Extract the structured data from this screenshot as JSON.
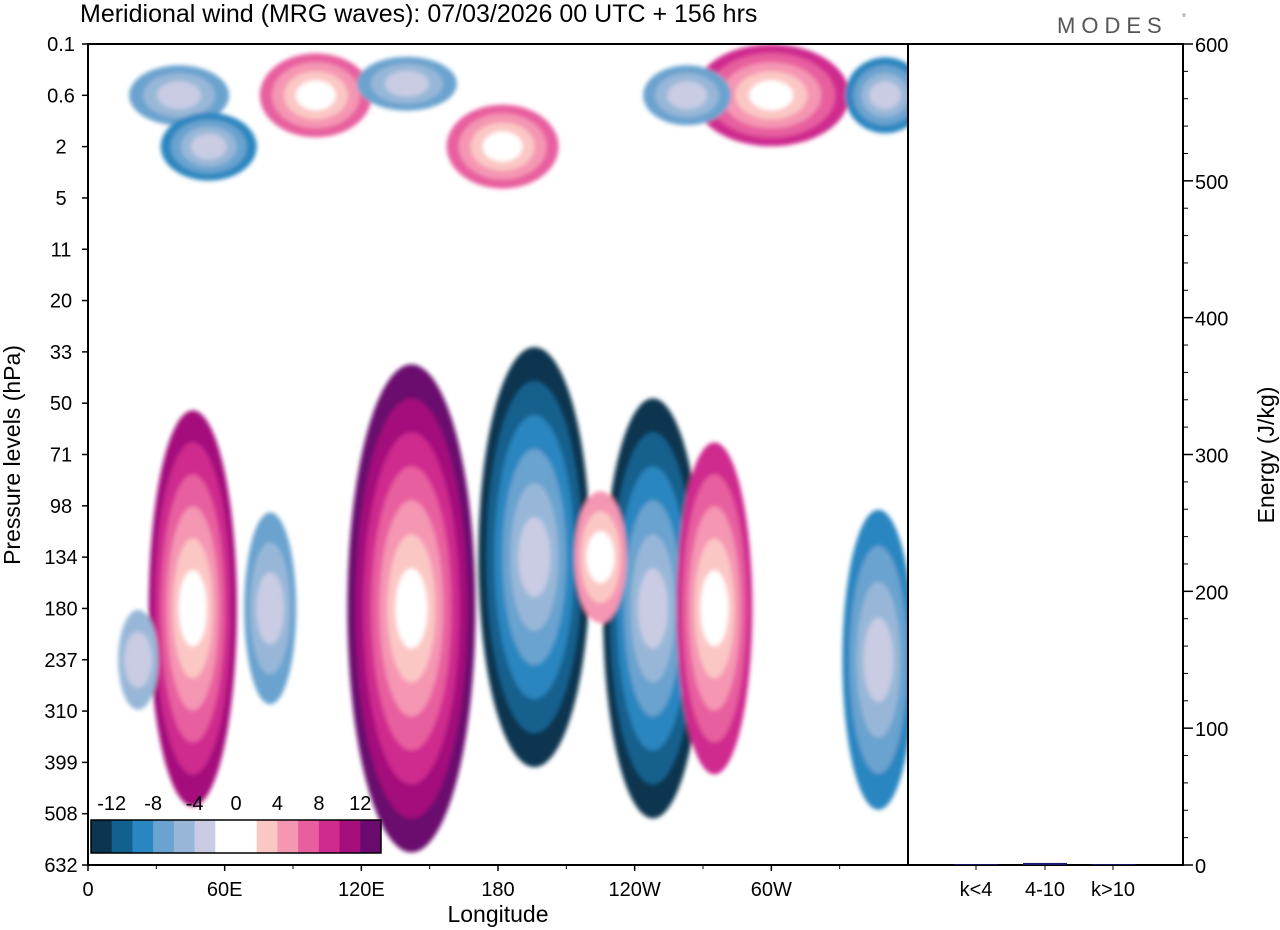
{
  "chart_data": [
    {
      "type": "heatmap",
      "title": "Meridional wind (MRG waves):  07/03/2026  00 UTC  + 156 hrs",
      "xlabel": "Longitude",
      "ylabel": "Pressure levels (hPa)",
      "x_ticks": [
        "0",
        "60E",
        "120E",
        "180",
        "120W",
        "60W"
      ],
      "x_tick_values": [
        0,
        60,
        120,
        180,
        240,
        300
      ],
      "xlim": [
        0,
        360
      ],
      "y_ticks": [
        "0.1",
        "0.6",
        "2",
        "5",
        "11",
        "20",
        "33",
        "50",
        "71",
        "98",
        "134",
        "180",
        "237",
        "310",
        "399",
        "508",
        "632"
      ],
      "colorbar": {
        "labels": [
          "-12",
          "-8",
          "-4",
          "0",
          "4",
          "8",
          "12"
        ],
        "levels": [
          -14,
          -12,
          -10,
          -8,
          -6,
          -4,
          -2,
          2,
          4,
          6,
          8,
          10,
          12,
          14
        ],
        "colors": [
          "#0b3550",
          "#12608e",
          "#2a86c0",
          "#6aa3cf",
          "#98b7d8",
          "#c9cce3",
          "#ffffff",
          "#ffffff",
          "#fbc7c4",
          "#f596b3",
          "#e85f9f",
          "#cf2a8e",
          "#a50e7c",
          "#6a0a6e"
        ]
      },
      "features": [
        {
          "lon": 46,
          "plev": 180,
          "value": 12
        },
        {
          "lon": 142,
          "plev": 180,
          "value": 14
        },
        {
          "lon": 196,
          "plev": 134,
          "value": -12
        },
        {
          "lon": 248,
          "plev": 180,
          "value": -12
        },
        {
          "lon": 275,
          "plev": 180,
          "value": 10
        },
        {
          "lon": 80,
          "plev": 180,
          "value": -6
        },
        {
          "lon": 225,
          "plev": 134,
          "value": 6
        },
        {
          "lon": 347,
          "plev": 237,
          "value": -8
        },
        {
          "lon": 22,
          "plev": 237,
          "value": -4
        },
        {
          "lon": 300,
          "plev": 0.6,
          "value": 10
        },
        {
          "lon": 182,
          "plev": 2,
          "value": 8
        },
        {
          "lon": 100,
          "plev": 0.6,
          "value": 8
        },
        {
          "lon": 140,
          "plev": 0.4,
          "value": -6
        },
        {
          "lon": 40,
          "plev": 0.6,
          "value": -6
        },
        {
          "lon": 263,
          "plev": 0.6,
          "value": -6
        },
        {
          "lon": 53,
          "plev": 2,
          "value": -8
        },
        {
          "lon": 350,
          "plev": 0.6,
          "value": -8
        }
      ]
    },
    {
      "type": "bar",
      "ylabel": "Energy (J/kg)",
      "categories": [
        "k<4",
        "4-10",
        "k>10"
      ],
      "values": [
        0,
        1.5,
        0
      ],
      "ylim": [
        0,
        600
      ],
      "y_ticks": [
        "0",
        "100",
        "200",
        "300",
        "400",
        "500",
        "600"
      ],
      "y_tick_values": [
        0,
        100,
        200,
        300,
        400,
        500,
        600
      ],
      "bar_color": "#1a1a6e"
    }
  ],
  "logo": {
    "text": "MODES",
    "mark": "°"
  }
}
